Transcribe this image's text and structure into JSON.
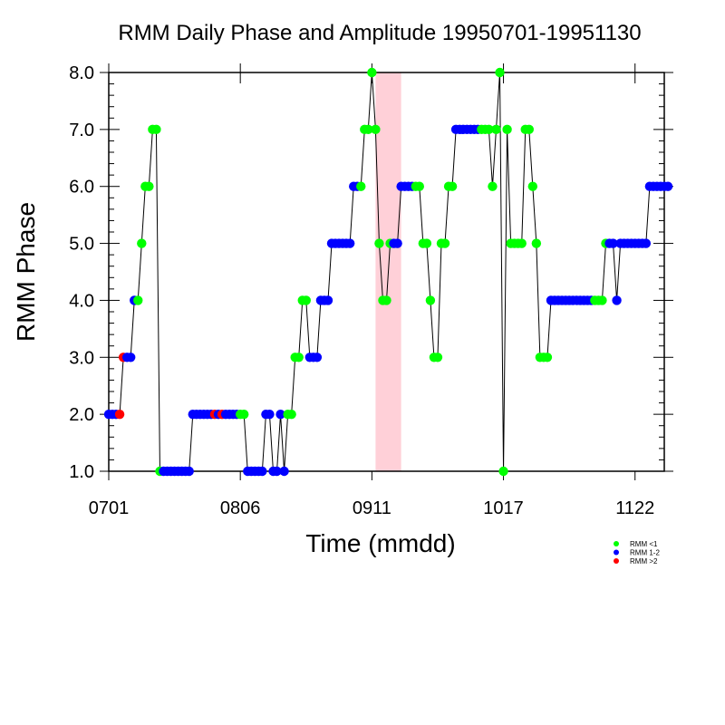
{
  "chart_data": {
    "type": "scatter",
    "title": "RMM Daily Phase and Amplitude 19950701-19951130",
    "xlabel": "Time (mmdd)",
    "ylabel": "RMM Phase",
    "xlim": [
      0,
      152
    ],
    "ylim": [
      1.0,
      8.0
    ],
    "x_tick_days": [
      0,
      36,
      72,
      108,
      144
    ],
    "x_tick_labels": [
      "0701",
      "0806",
      "0911",
      "1017",
      "1122"
    ],
    "y_ticks": [
      1,
      2,
      3,
      4,
      5,
      6,
      7,
      8
    ],
    "y_tick_labels": [
      "1.0",
      "2.0",
      "3.0",
      "4.0",
      "5.0",
      "6.0",
      "7.0",
      "8.0"
    ],
    "highlight_band": {
      "x_start": 73,
      "x_end": 80,
      "color": "#ffd0d8"
    },
    "phase": [
      2,
      2,
      2,
      2,
      3,
      3,
      3,
      4,
      4,
      5,
      6,
      6,
      7,
      7,
      1,
      1,
      1,
      1,
      1,
      1,
      1,
      1,
      1,
      2,
      2,
      2,
      2,
      2,
      2,
      2,
      2,
      2,
      2,
      2,
      2,
      2,
      2,
      2,
      1,
      1,
      1,
      1,
      1,
      2,
      2,
      1,
      1,
      2,
      1,
      2,
      2,
      3,
      3,
      4,
      4,
      3,
      3,
      3,
      4,
      4,
      4,
      5,
      5,
      5,
      5,
      5,
      5,
      6,
      6,
      6,
      7,
      7,
      8,
      7,
      5,
      4,
      4,
      5,
      5,
      5,
      6,
      6,
      6,
      6,
      6,
      6,
      5,
      5,
      4,
      3,
      3,
      5,
      5,
      6,
      6,
      7,
      7,
      7,
      7,
      7,
      7,
      7,
      7,
      7,
      7,
      6,
      7,
      8,
      1,
      7,
      5,
      5,
      5,
      5,
      7,
      7,
      6,
      5,
      3,
      3,
      3,
      4,
      4,
      4,
      4,
      4,
      4,
      4,
      4,
      4,
      4,
      4,
      4,
      4,
      4,
      4,
      5,
      5,
      5,
      4,
      5,
      5,
      5,
      5,
      5,
      5,
      5,
      5,
      6,
      6,
      6,
      6,
      6,
      6
    ],
    "amp_class": [
      1,
      1,
      1,
      2,
      2,
      1,
      1,
      1,
      0,
      0,
      0,
      0,
      0,
      0,
      0,
      1,
      1,
      1,
      1,
      1,
      1,
      1,
      1,
      1,
      1,
      1,
      1,
      1,
      1,
      2,
      1,
      2,
      1,
      1,
      1,
      1,
      0,
      0,
      1,
      1,
      1,
      1,
      1,
      1,
      1,
      1,
      1,
      1,
      1,
      0,
      0,
      0,
      0,
      0,
      0,
      1,
      1,
      1,
      1,
      1,
      1,
      1,
      1,
      1,
      1,
      1,
      1,
      1,
      1,
      0,
      0,
      0,
      0,
      0,
      0,
      0,
      0,
      0,
      1,
      1,
      1,
      1,
      1,
      1,
      0,
      0,
      0,
      0,
      0,
      0,
      0,
      0,
      0,
      0,
      0,
      1,
      1,
      1,
      1,
      1,
      1,
      1,
      0,
      0,
      0,
      0,
      0,
      0,
      0,
      0,
      0,
      0,
      0,
      0,
      0,
      0,
      0,
      0,
      0,
      0,
      0,
      1,
      1,
      1,
      1,
      1,
      1,
      1,
      1,
      1,
      1,
      1,
      1,
      0,
      0,
      0,
      0,
      1,
      1,
      1,
      1,
      1,
      1,
      1,
      1,
      1,
      1,
      1,
      1,
      1,
      1,
      1,
      1,
      1
    ],
    "series": [
      {
        "name": "RMM <1",
        "color": "#00ff00"
      },
      {
        "name": "RMM 1-2",
        "color": "#0000ff"
      },
      {
        "name": "RMM >2",
        "color": "#ff0000"
      }
    ]
  }
}
